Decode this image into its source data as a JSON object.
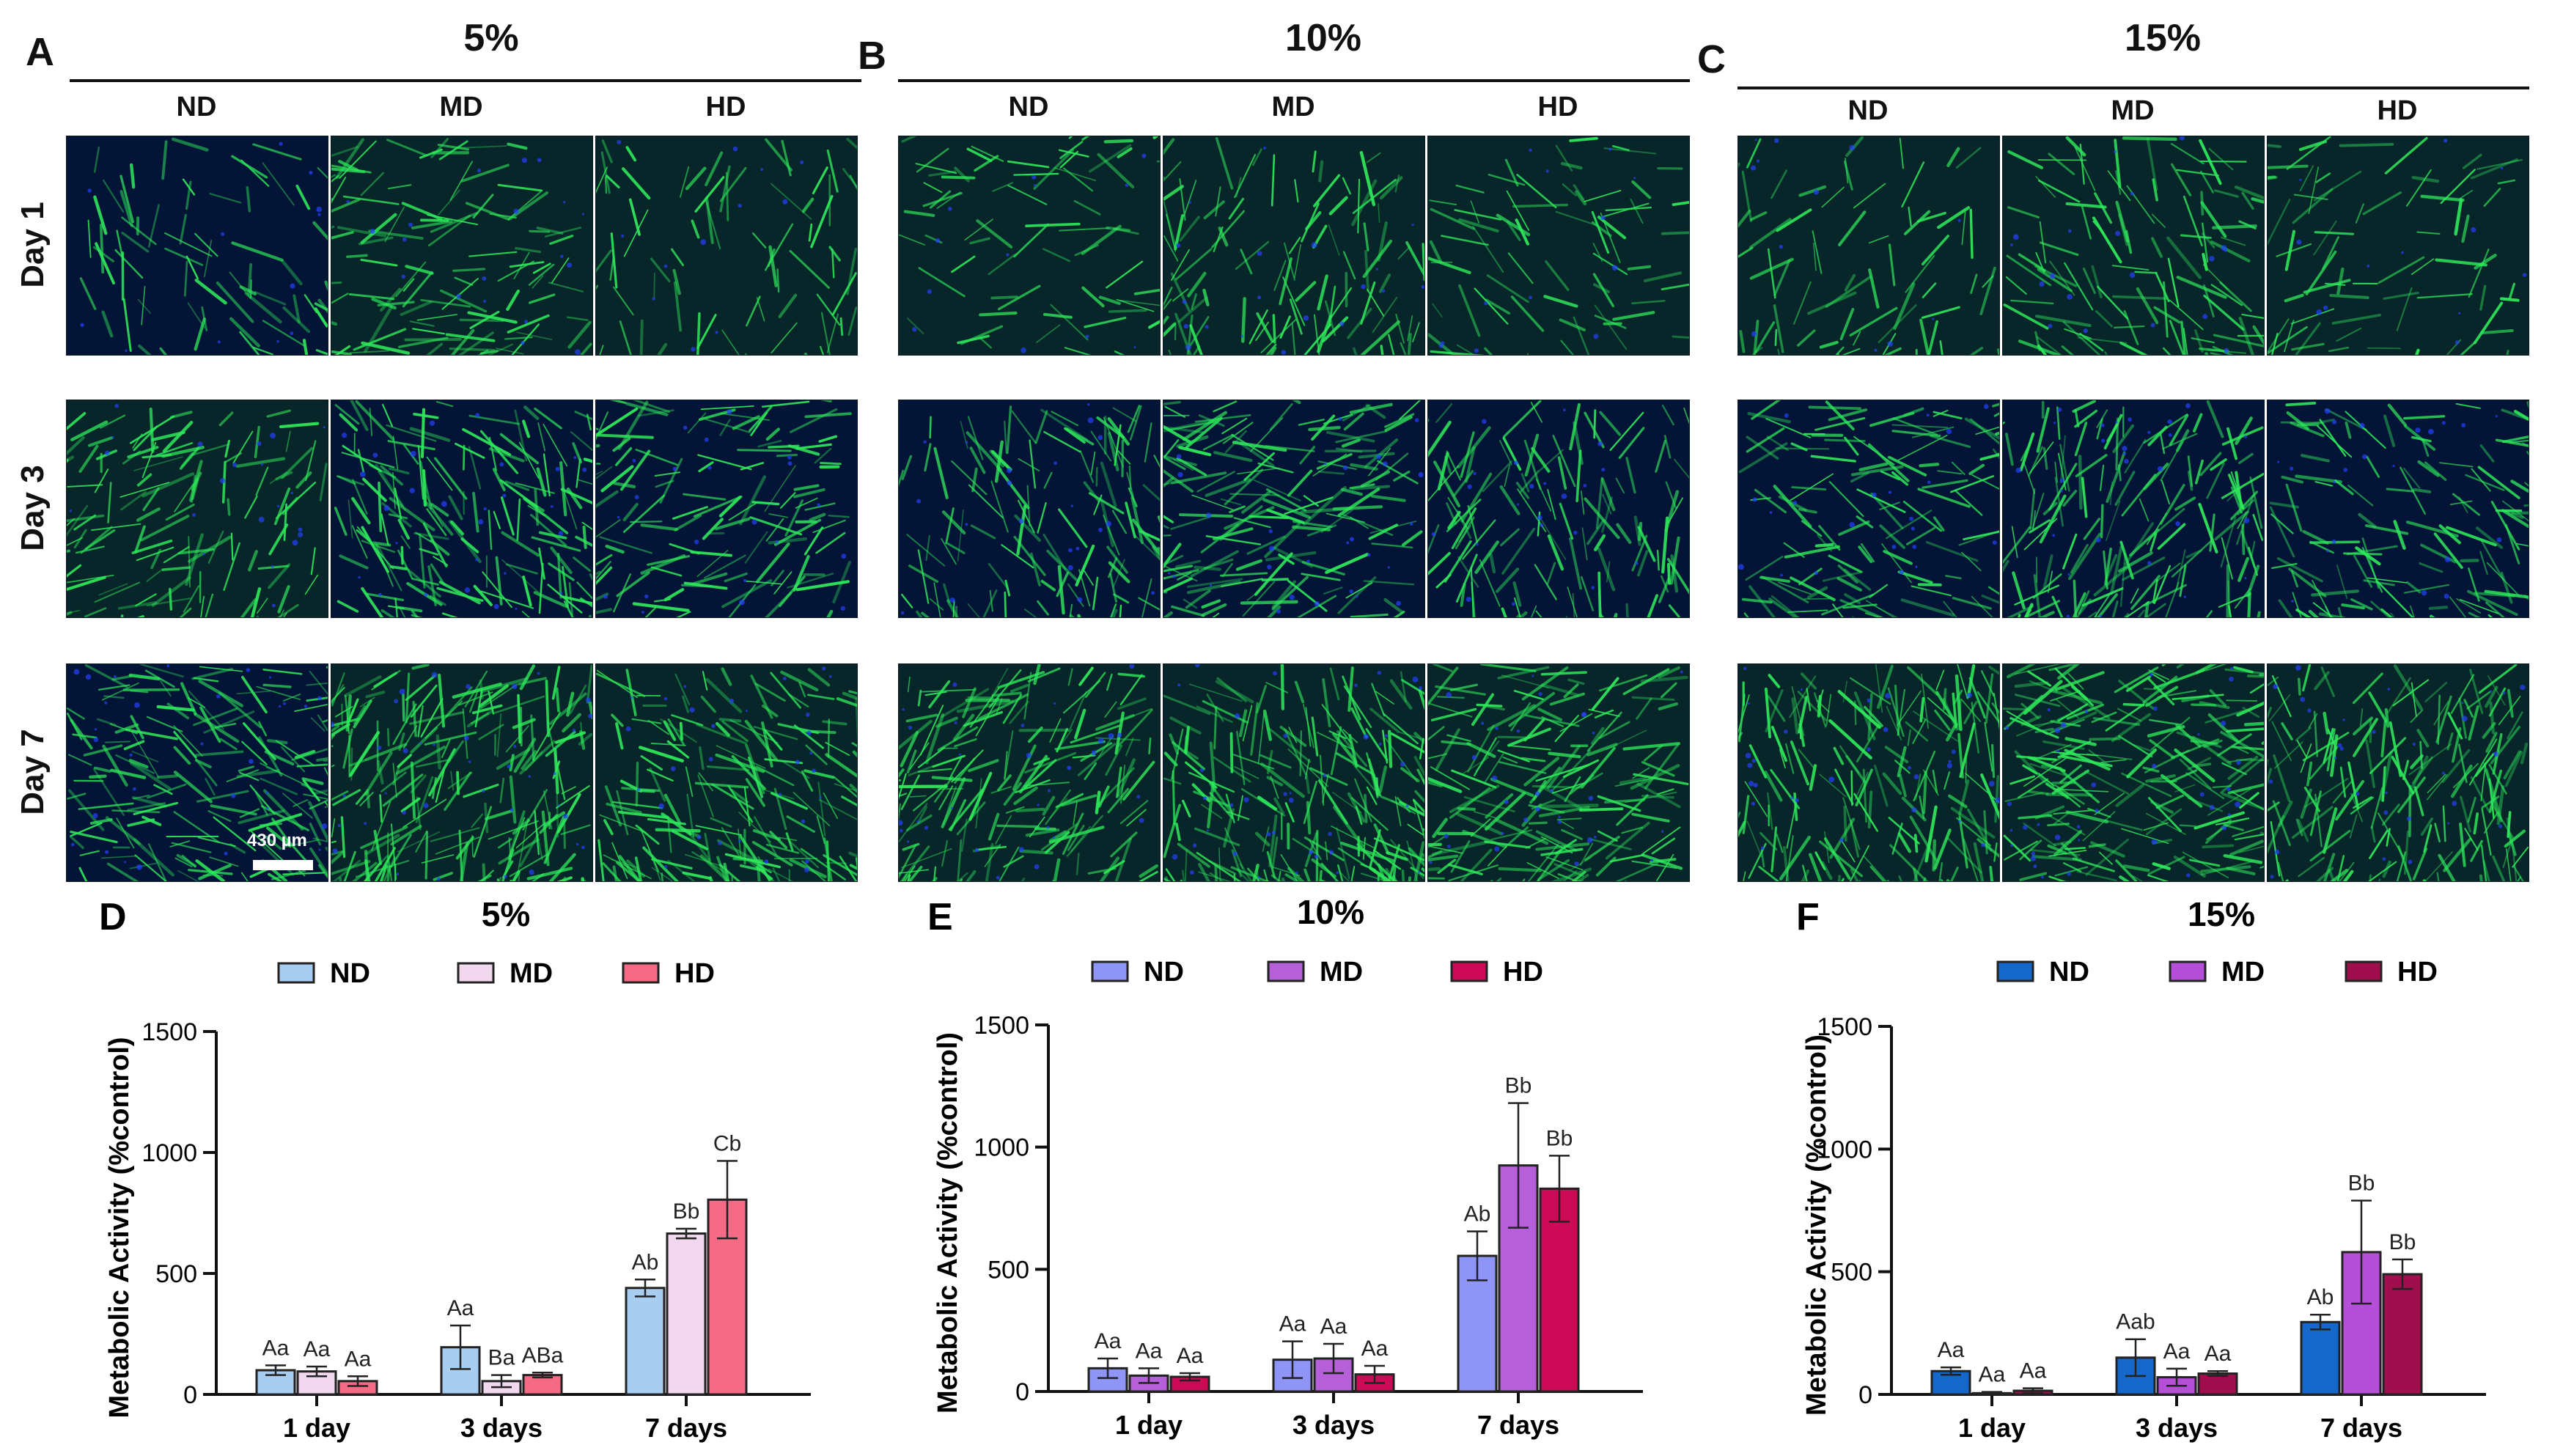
{
  "panels_top": [
    {
      "letter": "A",
      "title": "5%"
    },
    {
      "letter": "B",
      "title": "10%"
    },
    {
      "letter": "C",
      "title": "15%"
    }
  ],
  "columns": [
    "ND",
    "MD",
    "HD"
  ],
  "rows": [
    "Day 1",
    "Day 3",
    "Day 7"
  ],
  "scale_bar_label": "430 µm",
  "image_theme": {
    "bg_a": "#041436",
    "bg_b": "#08252a",
    "cell": "#2ee85a",
    "nuc": "#2340ff"
  },
  "chart_data": [
    {
      "type": "bar",
      "letter": "D",
      "title": "5%",
      "ylabel": "Metabolic Activity (%control)",
      "xlabel": "",
      "categories": [
        "1 day",
        "3 days",
        "7 days"
      ],
      "ylim": [
        0,
        1500
      ],
      "yticks": [
        0,
        500,
        1000,
        1500
      ],
      "series": [
        {
          "name": "ND",
          "color": "#a7cdf0",
          "values": [
            100,
            195,
            440
          ],
          "errors": [
            20,
            90,
            35
          ],
          "labels": [
            "Aa",
            "Aa",
            "Ab"
          ]
        },
        {
          "name": "MD",
          "color": "#f2d8ee",
          "values": [
            95,
            55,
            665
          ],
          "errors": [
            20,
            25,
            20
          ],
          "labels": [
            "Aa",
            "Ba",
            "Bb"
          ]
        },
        {
          "name": "HD",
          "color": "#f56b86",
          "values": [
            55,
            80,
            805
          ],
          "errors": [
            20,
            10,
            160
          ],
          "labels": [
            "Aa",
            "ABa",
            "Cb"
          ]
        }
      ]
    },
    {
      "type": "bar",
      "letter": "E",
      "title": "10%",
      "ylabel": "Metabolic Activity (%control)",
      "xlabel": "",
      "categories": [
        "1 day",
        "3 days",
        "7 days"
      ],
      "ylim": [
        0,
        1500
      ],
      "yticks": [
        0,
        500,
        1000,
        1500
      ],
      "series": [
        {
          "name": "ND",
          "color": "#8f95f5",
          "values": [
            95,
            130,
            555
          ],
          "errors": [
            40,
            75,
            100
          ],
          "labels": [
            "Aa",
            "Aa",
            "Ab"
          ]
        },
        {
          "name": "MD",
          "color": "#b55fd8",
          "values": [
            65,
            135,
            925
          ],
          "errors": [
            30,
            60,
            255
          ],
          "labels": [
            "Aa",
            "Aa",
            "Bb"
          ]
        },
        {
          "name": "HD",
          "color": "#cc0a55",
          "values": [
            60,
            70,
            830
          ],
          "errors": [
            15,
            35,
            135
          ],
          "labels": [
            "Aa",
            "Aa",
            "Bb"
          ]
        }
      ]
    },
    {
      "type": "bar",
      "letter": "F",
      "title": "15%",
      "ylabel": "Metabolic Activity (%control)",
      "xlabel": "",
      "categories": [
        "1 day",
        "3 days",
        "7 days"
      ],
      "ylim": [
        0,
        1500
      ],
      "yticks": [
        0,
        500,
        1000,
        1500
      ],
      "series": [
        {
          "name": "ND",
          "color": "#1568c9",
          "values": [
            95,
            150,
            295
          ],
          "errors": [
            15,
            75,
            30
          ],
          "labels": [
            "Aa",
            "Aab",
            "Ab"
          ]
        },
        {
          "name": "MD",
          "color": "#b64fd8",
          "values": [
            5,
            70,
            580
          ],
          "errors": [
            5,
            35,
            210
          ],
          "labels": [
            "Aa",
            "Aa",
            "Bb"
          ]
        },
        {
          "name": "HD",
          "color": "#a10e4e",
          "values": [
            15,
            85,
            490
          ],
          "errors": [
            10,
            10,
            60
          ],
          "labels": [
            "Aa",
            "Aa",
            "Bb"
          ]
        }
      ]
    }
  ]
}
